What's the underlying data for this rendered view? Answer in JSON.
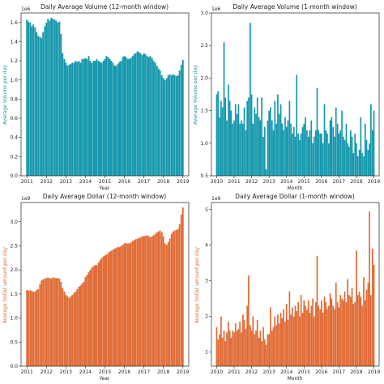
{
  "colors": {
    "volume": "#1497ac",
    "dollar": "#e06a34"
  },
  "chart_data": [
    {
      "type": "bar",
      "title": "Daily Average Volume (12-month window)",
      "xlabel": "Year",
      "ylabel": "Average Volume per day",
      "multiplier": "1e6",
      "ylim": [
        0,
        1.7
      ],
      "yticks": [
        "0.0",
        "0.2",
        "0.4",
        "0.6",
        "0.8",
        "1.0",
        "1.2",
        "1.4",
        "1.6"
      ],
      "xlim": [
        2010.7,
        2019.3
      ],
      "xticks": [
        "2011",
        "2012",
        "2013",
        "2014",
        "2015",
        "2016",
        "2017",
        "2018",
        "2019"
      ],
      "color": "volume",
      "x": [
        2011.0,
        2011.08,
        2011.17,
        2011.25,
        2011.33,
        2011.42,
        2011.5,
        2011.58,
        2011.67,
        2011.75,
        2011.83,
        2011.92,
        2012.0,
        2012.08,
        2012.17,
        2012.25,
        2012.33,
        2012.42,
        2012.5,
        2012.58,
        2012.67,
        2012.75,
        2012.83,
        2012.92,
        2013.0,
        2013.08,
        2013.17,
        2013.25,
        2013.33,
        2013.42,
        2013.5,
        2013.58,
        2013.67,
        2013.75,
        2013.83,
        2013.92,
        2014.0,
        2014.08,
        2014.17,
        2014.25,
        2014.33,
        2014.42,
        2014.5,
        2014.58,
        2014.67,
        2014.75,
        2014.83,
        2014.92,
        2015.0,
        2015.08,
        2015.17,
        2015.25,
        2015.33,
        2015.42,
        2015.5,
        2015.58,
        2015.67,
        2015.75,
        2015.83,
        2015.92,
        2016.0,
        2016.08,
        2016.17,
        2016.25,
        2016.33,
        2016.42,
        2016.5,
        2016.58,
        2016.67,
        2016.75,
        2016.83,
        2016.92,
        2017.0,
        2017.08,
        2017.17,
        2017.25,
        2017.33,
        2017.42,
        2017.5,
        2017.58,
        2017.67,
        2017.75,
        2017.83,
        2017.92,
        2018.0,
        2018.08,
        2018.17,
        2018.25,
        2018.33,
        2018.42,
        2018.5,
        2018.58,
        2018.67,
        2018.75,
        2018.83,
        2018.92,
        2019.0
      ],
      "values": [
        1.63,
        1.61,
        1.6,
        1.56,
        1.58,
        1.55,
        1.5,
        1.46,
        1.45,
        1.44,
        1.5,
        1.56,
        1.6,
        1.64,
        1.62,
        1.65,
        1.64,
        1.63,
        1.62,
        1.6,
        1.61,
        1.48,
        1.28,
        1.22,
        1.18,
        1.15,
        1.16,
        1.17,
        1.18,
        1.18,
        1.2,
        1.19,
        1.2,
        1.18,
        1.22,
        1.22,
        1.23,
        1.22,
        1.25,
        1.2,
        1.18,
        1.2,
        1.2,
        1.22,
        1.2,
        1.19,
        1.18,
        1.2,
        1.22,
        1.25,
        1.24,
        1.22,
        1.2,
        1.18,
        1.15,
        1.15,
        1.17,
        1.19,
        1.2,
        1.24,
        1.25,
        1.24,
        1.22,
        1.22,
        1.23,
        1.25,
        1.27,
        1.28,
        1.3,
        1.29,
        1.28,
        1.26,
        1.28,
        1.27,
        1.25,
        1.24,
        1.25,
        1.23,
        1.2,
        1.18,
        1.15,
        1.12,
        1.1,
        1.05,
        1.02,
        1.0,
        1.02,
        1.05,
        1.06,
        1.05,
        1.06,
        1.05,
        1.04,
        1.05,
        1.1,
        1.16,
        1.21
      ]
    },
    {
      "type": "bar",
      "title": "Daily Average Volume (1-month window)",
      "xlabel": "Month",
      "ylabel": "Average Volume per day",
      "multiplier": "1e6",
      "ylim": [
        0.5,
        3.0
      ],
      "yticks": [
        "0.5",
        "1.0",
        "1.5",
        "2.0",
        "2.5",
        "3.0"
      ],
      "xlim": [
        2009.7,
        2019.3
      ],
      "xticks": [
        "2010",
        "2011",
        "2012",
        "2013",
        "2014",
        "2015",
        "2016",
        "2017",
        "2018",
        "2019"
      ],
      "color": "volume",
      "x": [
        2010.0,
        2010.08,
        2010.17,
        2010.25,
        2010.33,
        2010.42,
        2010.5,
        2010.58,
        2010.67,
        2010.75,
        2010.83,
        2010.92,
        2011.0,
        2011.08,
        2011.17,
        2011.25,
        2011.33,
        2011.42,
        2011.5,
        2011.58,
        2011.67,
        2011.75,
        2011.83,
        2011.92,
        2012.0,
        2012.08,
        2012.17,
        2012.25,
        2012.33,
        2012.42,
        2012.5,
        2012.58,
        2012.67,
        2012.75,
        2012.83,
        2012.92,
        2013.0,
        2013.08,
        2013.17,
        2013.25,
        2013.33,
        2013.42,
        2013.5,
        2013.58,
        2013.67,
        2013.75,
        2013.83,
        2013.92,
        2014.0,
        2014.08,
        2014.17,
        2014.25,
        2014.33,
        2014.42,
        2014.5,
        2014.58,
        2014.67,
        2014.75,
        2014.83,
        2014.92,
        2015.0,
        2015.08,
        2015.17,
        2015.25,
        2015.33,
        2015.42,
        2015.5,
        2015.58,
        2015.67,
        2015.75,
        2015.83,
        2015.92,
        2016.0,
        2016.08,
        2016.17,
        2016.25,
        2016.33,
        2016.42,
        2016.5,
        2016.58,
        2016.67,
        2016.75,
        2016.83,
        2016.92,
        2017.0,
        2017.08,
        2017.17,
        2017.25,
        2017.33,
        2017.42,
        2017.5,
        2017.58,
        2017.67,
        2017.75,
        2017.83,
        2017.92,
        2018.0,
        2018.08,
        2018.17,
        2018.25,
        2018.33,
        2018.42,
        2018.5,
        2018.58,
        2018.67,
        2018.75,
        2018.83,
        2018.92,
        2019.0
      ],
      "values": [
        1.75,
        1.8,
        1.4,
        1.65,
        1.55,
        2.55,
        1.7,
        1.35,
        1.9,
        1.65,
        1.5,
        1.3,
        1.35,
        1.6,
        1.45,
        1.6,
        1.3,
        1.35,
        1.3,
        1.55,
        1.2,
        1.65,
        1.7,
        2.85,
        1.75,
        1.3,
        1.55,
        1.45,
        1.7,
        1.4,
        1.35,
        1.7,
        1.1,
        1.25,
        0.6,
        1.35,
        1.5,
        1.55,
        1.35,
        1.2,
        1.65,
        1.3,
        1.75,
        1.45,
        1.6,
        1.3,
        1.2,
        1.4,
        1.25,
        1.35,
        1.65,
        1.3,
        1.15,
        1.25,
        1.1,
        2.05,
        1.15,
        1.05,
        1.15,
        1.25,
        1.3,
        1.4,
        1.2,
        1.1,
        1.2,
        1.35,
        1.0,
        1.1,
        1.2,
        1.85,
        1.2,
        1.15,
        1.15,
        1.0,
        1.6,
        1.2,
        1.15,
        1.0,
        1.35,
        1.4,
        1.25,
        1.1,
        1.55,
        1.3,
        1.15,
        1.2,
        1.5,
        1.1,
        1.05,
        1.3,
        1.0,
        0.95,
        1.2,
        1.1,
        0.85,
        1.15,
        1.0,
        0.8,
        0.9,
        1.4,
        0.85,
        0.8,
        1.3,
        1.05,
        0.9,
        1.0,
        1.6,
        1.2,
        1.5
      ]
    },
    {
      "type": "bar",
      "title": "Daily Average Dollar (12-month window)",
      "xlabel": "Year",
      "ylabel": "Average Dollar amount per day",
      "multiplier": "1e9",
      "ylim": [
        0,
        3.4
      ],
      "yticks": [
        "0.0",
        "0.5",
        "1.0",
        "1.5",
        "2.0",
        "2.5",
        "3.0"
      ],
      "xlim": [
        2010.7,
        2019.3
      ],
      "xticks": [
        "2011",
        "2012",
        "2013",
        "2014",
        "2015",
        "2016",
        "2017",
        "2018",
        "2019"
      ],
      "color": "dollar",
      "x": [
        2011.0,
        2011.08,
        2011.17,
        2011.25,
        2011.33,
        2011.42,
        2011.5,
        2011.58,
        2011.67,
        2011.75,
        2011.83,
        2011.92,
        2012.0,
        2012.08,
        2012.17,
        2012.25,
        2012.33,
        2012.42,
        2012.5,
        2012.58,
        2012.67,
        2012.75,
        2012.83,
        2012.92,
        2013.0,
        2013.08,
        2013.17,
        2013.25,
        2013.33,
        2013.42,
        2013.5,
        2013.58,
        2013.67,
        2013.75,
        2013.83,
        2013.92,
        2014.0,
        2014.08,
        2014.17,
        2014.25,
        2014.33,
        2014.42,
        2014.5,
        2014.58,
        2014.67,
        2014.75,
        2014.83,
        2014.92,
        2015.0,
        2015.08,
        2015.17,
        2015.25,
        2015.33,
        2015.42,
        2015.5,
        2015.58,
        2015.67,
        2015.75,
        2015.83,
        2015.92,
        2016.0,
        2016.08,
        2016.17,
        2016.25,
        2016.33,
        2016.42,
        2016.5,
        2016.58,
        2016.67,
        2016.75,
        2016.83,
        2016.92,
        2017.0,
        2017.08,
        2017.17,
        2017.25,
        2017.33,
        2017.42,
        2017.5,
        2017.58,
        2017.67,
        2017.75,
        2017.83,
        2017.92,
        2018.0,
        2018.08,
        2018.17,
        2018.25,
        2018.33,
        2018.42,
        2018.5,
        2018.58,
        2018.67,
        2018.75,
        2018.83,
        2018.92,
        2019.0
      ],
      "values": [
        1.58,
        1.57,
        1.58,
        1.56,
        1.55,
        1.55,
        1.58,
        1.6,
        1.7,
        1.78,
        1.8,
        1.82,
        1.83,
        1.84,
        1.83,
        1.82,
        1.84,
        1.84,
        1.83,
        1.83,
        1.82,
        1.75,
        1.62,
        1.55,
        1.48,
        1.45,
        1.42,
        1.45,
        1.48,
        1.52,
        1.55,
        1.6,
        1.65,
        1.68,
        1.72,
        1.75,
        1.85,
        1.9,
        1.95,
        2.0,
        2.05,
        2.08,
        2.1,
        2.1,
        2.15,
        2.2,
        2.25,
        2.28,
        2.3,
        2.32,
        2.35,
        2.38,
        2.4,
        2.42,
        2.44,
        2.46,
        2.48,
        2.47,
        2.5,
        2.52,
        2.55,
        2.56,
        2.55,
        2.55,
        2.57,
        2.6,
        2.62,
        2.64,
        2.65,
        2.66,
        2.68,
        2.7,
        2.7,
        2.71,
        2.72,
        2.7,
        2.68,
        2.7,
        2.72,
        2.75,
        2.78,
        2.8,
        2.82,
        2.78,
        2.7,
        2.55,
        2.52,
        2.58,
        2.65,
        2.75,
        2.8,
        2.82,
        2.83,
        2.85,
        2.95,
        3.15,
        3.3
      ]
    },
    {
      "type": "bar",
      "title": "Daily Average Dollar (1-month window)",
      "xlabel": "Month",
      "ylabel": "Average Dollar amount per day",
      "multiplier": "1e9",
      "ylim": [
        0.6,
        5.2
      ],
      "yticks": [
        "1",
        "2",
        "3",
        "4",
        "5"
      ],
      "xlim": [
        2009.7,
        2019.3
      ],
      "xticks": [
        "2010",
        "2011",
        "2012",
        "2013",
        "2014",
        "2015",
        "2016",
        "2017",
        "2018",
        "2019"
      ],
      "color": "dollar",
      "x": [
        2010.0,
        2010.08,
        2010.17,
        2010.25,
        2010.33,
        2010.42,
        2010.5,
        2010.58,
        2010.67,
        2010.75,
        2010.83,
        2010.92,
        2011.0,
        2011.08,
        2011.17,
        2011.25,
        2011.33,
        2011.42,
        2011.5,
        2011.58,
        2011.67,
        2011.75,
        2011.83,
        2011.92,
        2012.0,
        2012.08,
        2012.17,
        2012.25,
        2012.33,
        2012.42,
        2012.5,
        2012.58,
        2012.67,
        2012.75,
        2012.83,
        2012.92,
        2013.0,
        2013.08,
        2013.17,
        2013.25,
        2013.33,
        2013.42,
        2013.5,
        2013.58,
        2013.67,
        2013.75,
        2013.83,
        2013.92,
        2014.0,
        2014.08,
        2014.17,
        2014.25,
        2014.33,
        2014.42,
        2014.5,
        2014.58,
        2014.67,
        2014.75,
        2014.83,
        2014.92,
        2015.0,
        2015.08,
        2015.17,
        2015.25,
        2015.33,
        2015.42,
        2015.5,
        2015.58,
        2015.67,
        2015.75,
        2015.83,
        2015.92,
        2016.0,
        2016.08,
        2016.17,
        2016.25,
        2016.33,
        2016.42,
        2016.5,
        2016.58,
        2016.67,
        2016.75,
        2016.83,
        2016.92,
        2017.0,
        2017.08,
        2017.17,
        2017.25,
        2017.33,
        2017.42,
        2017.5,
        2017.58,
        2017.67,
        2017.75,
        2017.83,
        2017.92,
        2018.0,
        2018.08,
        2018.17,
        2018.25,
        2018.33,
        2018.42,
        2018.5,
        2018.58,
        2018.67,
        2018.75,
        2018.83,
        2018.92,
        2019.0
      ],
      "values": [
        1.7,
        1.35,
        1.5,
        2.0,
        1.4,
        1.6,
        1.3,
        1.55,
        1.85,
        1.6,
        1.4,
        1.6,
        1.55,
        1.8,
        1.6,
        1.65,
        1.85,
        1.55,
        2.05,
        1.9,
        1.65,
        2.3,
        3.15,
        1.75,
        1.6,
        2.0,
        1.5,
        1.6,
        1.9,
        1.4,
        1.6,
        1.3,
        1.7,
        1.35,
        1.2,
        1.5,
        1.5,
        2.25,
        1.6,
        1.7,
        2.0,
        1.75,
        2.05,
        1.8,
        2.1,
        1.95,
        2.2,
        1.85,
        2.35,
        1.9,
        2.7,
        2.05,
        2.25,
        2.0,
        2.3,
        2.15,
        2.4,
        2.0,
        2.6,
        2.1,
        2.45,
        2.3,
        2.2,
        2.45,
        2.1,
        2.3,
        2.5,
        2.0,
        2.4,
        3.7,
        2.3,
        2.2,
        2.45,
        2.1,
        2.55,
        2.4,
        2.2,
        2.3,
        2.65,
        2.5,
        2.3,
        2.2,
        2.95,
        2.4,
        2.25,
        2.6,
        2.5,
        2.45,
        2.7,
        2.4,
        3.05,
        2.6,
        2.55,
        2.8,
        2.35,
        2.4,
        3.85,
        2.6,
        2.7,
        2.55,
        2.3,
        3.1,
        2.45,
        2.75,
        2.95,
        4.95,
        2.6,
        3.9,
        3.45
      ]
    }
  ]
}
